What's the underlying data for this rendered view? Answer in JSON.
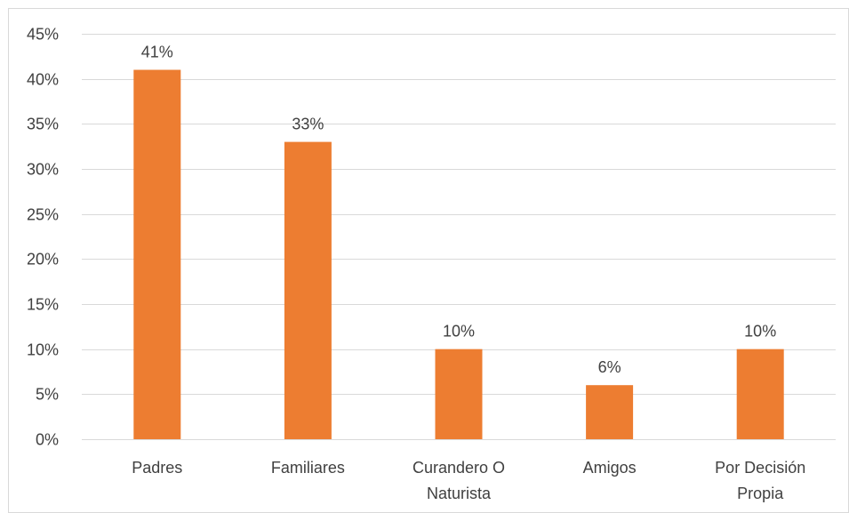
{
  "chart_data": {
    "type": "bar",
    "categories": [
      [
        "Padres"
      ],
      [
        "Familiares"
      ],
      [
        "Curandero O",
        "Naturista"
      ],
      [
        "Amigos"
      ],
      [
        "Por Decisión",
        "Propia"
      ]
    ],
    "values": [
      41,
      33,
      10,
      6,
      10
    ],
    "data_labels": [
      "41%",
      "33%",
      "10%",
      "6%",
      "10%"
    ],
    "y_ticks": [
      0,
      5,
      10,
      15,
      20,
      25,
      30,
      35,
      40,
      45
    ],
    "y_tick_labels": [
      "0%",
      "5%",
      "10%",
      "15%",
      "20%",
      "25%",
      "30%",
      "35%",
      "40%",
      "45%"
    ],
    "ylim": [
      0,
      45
    ],
    "grid": true,
    "legend": "none",
    "title": "",
    "xlabel": "",
    "ylabel": "",
    "colors": {
      "bar": "#ED7D31",
      "grid": "#D9D9D9",
      "axis": "#D9D9D9",
      "text": "#404040",
      "frame": "#D9D9D9"
    }
  }
}
